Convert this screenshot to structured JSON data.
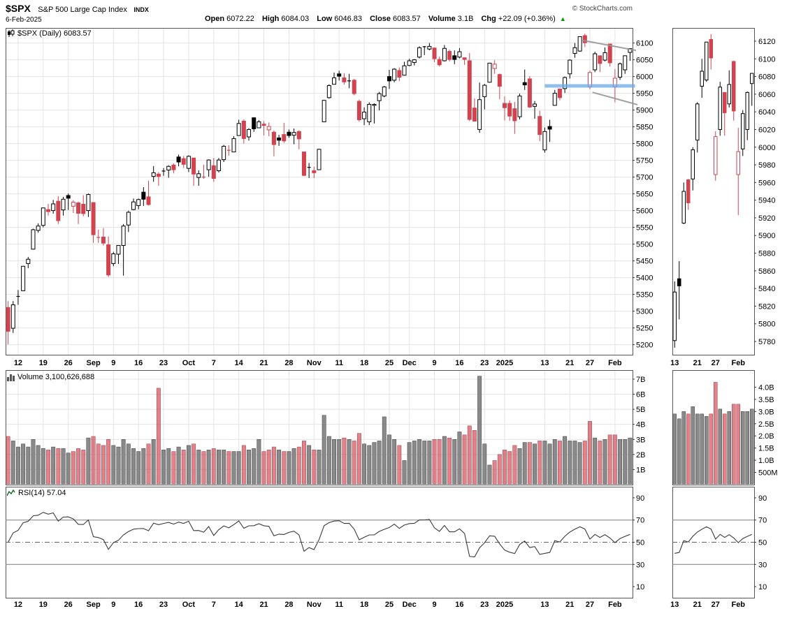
{
  "header": {
    "symbol": "$SPX",
    "name": "S&P 500 Large Cap Index",
    "exchange": "INDX",
    "copyright": "© StockCharts.com",
    "date": "6-Feb-2025",
    "quote": {
      "open_label": "Open",
      "open": "6072.22",
      "high_label": "High",
      "high": "6084.03",
      "low_label": "Low",
      "low": "6046.83",
      "close_label": "Close",
      "close": "6083.57",
      "volume_label": "Volume",
      "volume": "3.1B",
      "chg_label": "Chg",
      "chg": "+22.09 (+0.36%)",
      "arrow": "▲"
    }
  },
  "legends": {
    "price": "$SPX (Daily) 6083.57",
    "volume": "Volume 3,100,626,688",
    "rsi": "RSI(14) 57.04"
  },
  "chart_data": {
    "type": "candlestick",
    "title": "$SPX (Daily)",
    "timeframe": "Daily",
    "panels": [
      "price",
      "volume",
      "rsi"
    ],
    "last_close": 6083.57,
    "rsi_value": 57.04,
    "price_axis": {
      "min": 5170,
      "max": 6145,
      "ticks": [
        5200,
        5250,
        5300,
        5350,
        5400,
        5450,
        5500,
        5550,
        5600,
        5650,
        5700,
        5750,
        5800,
        5850,
        5900,
        5950,
        6000,
        6050,
        6100
      ]
    },
    "mini_price_axis": {
      "min": 5765,
      "max": 6135,
      "ticks": [
        5780,
        5800,
        5820,
        5840,
        5860,
        5880,
        5900,
        5920,
        5940,
        5960,
        5980,
        6000,
        6020,
        6040,
        6060,
        6080,
        6100,
        6120
      ]
    },
    "volume_axis": {
      "max": 7.6,
      "ticks": [
        {
          "v": 1,
          "label": "1B"
        },
        {
          "v": 2,
          "label": "2B"
        },
        {
          "v": 3,
          "label": "3B"
        },
        {
          "v": 4,
          "label": "4B"
        },
        {
          "v": 5,
          "label": "5B"
        },
        {
          "v": 6,
          "label": "6B"
        },
        {
          "v": 7,
          "label": "7B"
        }
      ]
    },
    "mini_volume_axis": {
      "max": 4.7,
      "ticks": [
        {
          "v": 0.5,
          "label": "500M"
        },
        {
          "v": 1,
          "label": "1.0B"
        },
        {
          "v": 1.5,
          "label": "1.5B"
        },
        {
          "v": 2,
          "label": "2.0B"
        },
        {
          "v": 2.5,
          "label": "2.5B"
        },
        {
          "v": 3,
          "label": "3.0B"
        },
        {
          "v": 3.5,
          "label": "3.5B"
        },
        {
          "v": 4,
          "label": "4.0B"
        }
      ]
    },
    "rsi_axis": {
      "ticks": [
        10,
        30,
        50,
        70,
        90
      ],
      "overbought": 70,
      "oversold": 30,
      "mid": 50
    },
    "candles": [
      [
        5311,
        5330,
        5201,
        5240,
        3.2
      ],
      [
        5249,
        5330,
        5235,
        5319,
        2.9
      ],
      [
        5344,
        5363,
        5319,
        5344,
        2.5
      ],
      [
        5361,
        5434,
        5360,
        5434,
        2.7
      ],
      [
        5442,
        5462,
        5428,
        5455,
        2.5
      ],
      [
        5485,
        5546,
        5484,
        5543,
        3.0
      ],
      [
        5541,
        5562,
        5534,
        5554,
        2.6
      ],
      [
        5556,
        5608,
        5550,
        5608,
        2.4
      ],
      [
        5603,
        5620,
        5585,
        5597,
        2.3
      ],
      [
        5600,
        5632,
        5591,
        5620,
        2.5
      ],
      [
        5628,
        5643,
        5560,
        5570,
        2.4
      ],
      [
        5602,
        5641,
        5585,
        5634,
        2.4
      ],
      [
        5645,
        5651,
        5602,
        5637,
        2.1
      ],
      [
        5613,
        5631,
        5593,
        5625,
        2.2
      ],
      [
        5623,
        5627,
        5560,
        5592,
        2.4
      ],
      [
        5619,
        5646,
        5583,
        5591,
        2.3
      ],
      [
        5600,
        5651,
        5581,
        5648,
        3.1
      ],
      [
        5624,
        5624,
        5504,
        5528,
        3.2
      ],
      [
        5518,
        5543,
        5504,
        5520,
        2.7
      ],
      [
        5521,
        5548,
        5496,
        5503,
        2.6
      ],
      [
        5498,
        5523,
        5402,
        5408,
        3.0
      ],
      [
        5442,
        5477,
        5434,
        5471,
        2.6
      ],
      [
        5470,
        5497,
        5441,
        5496,
        2.5
      ],
      [
        5496,
        5560,
        5406,
        5554,
        3.0
      ],
      [
        5557,
        5600,
        5536,
        5595,
        2.7
      ],
      [
        5603,
        5636,
        5601,
        5626,
        2.4
      ],
      [
        5615,
        5636,
        5604,
        5633,
        2.2
      ],
      [
        5655,
        5670,
        5614,
        5634,
        2.4
      ],
      [
        5641,
        5689,
        5615,
        5618,
        2.7
      ],
      [
        5702,
        5733,
        5686,
        5713,
        3.0
      ],
      [
        5709,
        5715,
        5674,
        5702,
        6.4
      ],
      [
        5718,
        5727,
        5704,
        5718,
        2.3
      ],
      [
        5721,
        5735,
        5698,
        5732,
        2.4
      ],
      [
        5736,
        5741,
        5711,
        5722,
        2.2
      ],
      [
        5760,
        5767,
        5732,
        5745,
        2.5
      ],
      [
        5755,
        5763,
        5727,
        5738,
        2.3
      ],
      [
        5726,
        5765,
        5715,
        5762,
        2.6
      ],
      [
        5757,
        5757,
        5674,
        5709,
        2.7
      ],
      [
        5699,
        5720,
        5674,
        5710,
        2.3
      ],
      [
        5700,
        5737,
        5695,
        5700,
        2.2
      ],
      [
        5722,
        5753,
        5701,
        5751,
        2.3
      ],
      [
        5734,
        5757,
        5686,
        5696,
        2.4
      ],
      [
        5719,
        5757,
        5714,
        5751,
        2.3
      ],
      [
        5752,
        5796,
        5745,
        5792,
        2.3
      ],
      [
        5778,
        5795,
        5764,
        5780,
        2.2
      ],
      [
        5775,
        5822,
        5775,
        5815,
        2.2
      ],
      [
        5824,
        5871,
        5824,
        5860,
        2.2
      ],
      [
        5867,
        5872,
        5800,
        5815,
        2.6
      ],
      [
        5820,
        5846,
        5809,
        5842,
        2.3
      ],
      [
        5877,
        5878,
        5835,
        5844,
        2.4
      ],
      [
        5847,
        5870,
        5846,
        5865,
        3.0
      ],
      [
        5858,
        5867,
        5824,
        5854,
        2.2
      ],
      [
        5841,
        5863,
        5822,
        5851,
        2.3
      ],
      [
        5834,
        5839,
        5762,
        5797,
        2.5
      ],
      [
        5817,
        5826,
        5793,
        5810,
        2.3
      ],
      [
        5827,
        5862,
        5802,
        5808,
        2.2
      ],
      [
        5834,
        5842,
        5817,
        5824,
        2.2
      ],
      [
        5825,
        5845,
        5798,
        5833,
        2.4
      ],
      [
        5836,
        5839,
        5783,
        5814,
        2.5
      ],
      [
        5775,
        5775,
        5703,
        5705,
        2.9
      ],
      [
        5727,
        5742,
        5697,
        5729,
        2.6
      ],
      [
        5719,
        5731,
        5697,
        5713,
        2.3
      ],
      [
        5722,
        5784,
        5722,
        5783,
        2.3
      ],
      [
        5865,
        5930,
        5865,
        5929,
        4.6
      ],
      [
        5937,
        5977,
        5934,
        5973,
        3.2
      ],
      [
        5977,
        6012,
        5977,
        5996,
        3.0
      ],
      [
        6008,
        6017,
        5988,
        6001,
        3.0
      ],
      [
        5996,
        6010,
        5976,
        5984,
        3.1
      ],
      [
        5987,
        6008,
        5965,
        5985,
        3.0
      ],
      [
        5989,
        5993,
        5944,
        5949,
        2.9
      ],
      [
        5926,
        5931,
        5865,
        5871,
        3.4
      ],
      [
        5874,
        5908,
        5855,
        5894,
        2.7
      ],
      [
        5865,
        5923,
        5855,
        5917,
        2.6
      ],
      [
        5914,
        5920,
        5860,
        5917,
        2.8
      ],
      [
        5928,
        5954,
        5899,
        5949,
        2.9
      ],
      [
        5942,
        5972,
        5938,
        5969,
        4.5
      ],
      [
        6000,
        6020,
        5963,
        5987,
        3.3
      ],
      [
        5989,
        6025,
        5983,
        6022,
        3.0
      ],
      [
        6018,
        6027,
        5986,
        5998,
        2.6
      ],
      [
        6004,
        6044,
        6003,
        6032,
        1.6
      ],
      [
        6033,
        6053,
        6031,
        6047,
        2.8
      ],
      [
        6042,
        6052,
        6033,
        6050,
        2.9
      ],
      [
        6058,
        6090,
        6054,
        6086,
        3.0
      ],
      [
        6089,
        6091,
        6064,
        6087,
        2.9
      ],
      [
        6082,
        6100,
        6078,
        6090,
        2.9
      ],
      [
        6085,
        6087,
        6043,
        6053,
        3.0
      ],
      [
        6051,
        6060,
        6030,
        6035,
        3.0
      ],
      [
        6047,
        6094,
        6045,
        6084,
        3.2
      ],
      [
        6075,
        6080,
        6045,
        6051,
        3.1
      ],
      [
        6062,
        6078,
        6037,
        6051,
        3.0
      ],
      [
        6058,
        6085,
        6054,
        6074,
        3.5
      ],
      [
        6056,
        6057,
        6035,
        6051,
        3.3
      ],
      [
        6047,
        6070,
        5867,
        5872,
        3.9
      ],
      [
        5906,
        5935,
        5866,
        5867,
        3.6
      ],
      [
        5842,
        5982,
        5832,
        5931,
        7.2
      ],
      [
        5940,
        5978,
        5902,
        5974,
        2.7
      ],
      [
        5983,
        6040,
        5982,
        6040,
        1.3
      ],
      [
        6024,
        6049,
        6008,
        6037,
        1.6
      ],
      [
        6006,
        6009,
        5932,
        5971,
        2.0
      ],
      [
        5920,
        5941,
        5869,
        5907,
        2.3
      ],
      [
        5920,
        5929,
        5868,
        5882,
        2.2
      ],
      [
        5904,
        5924,
        5829,
        5868,
        2.6
      ],
      [
        5880,
        5949,
        5872,
        5942,
        2.4
      ],
      [
        5982,
        6021,
        5960,
        5975,
        2.8
      ],
      [
        5993,
        6001,
        5906,
        5909,
        2.8
      ],
      [
        5911,
        5927,
        5874,
        5918,
        2.7
      ],
      [
        5881,
        5898,
        5807,
        5827,
        2.9
      ],
      [
        5781,
        5848,
        5773,
        5836,
        2.9
      ],
      [
        5851,
        5871,
        5805,
        5843,
        2.7
      ],
      [
        5914,
        5960,
        5913,
        5950,
        3.0
      ],
      [
        5963,
        5964,
        5929,
        5937,
        2.9
      ],
      [
        5964,
        6000,
        5951,
        5997,
        3.2
      ],
      [
        6008,
        6051,
        5994,
        6049,
        2.9
      ],
      [
        6069,
        6100,
        6056,
        6086,
        2.9
      ],
      [
        6076,
        6119,
        6074,
        6119,
        2.8
      ],
      [
        6122,
        6128,
        6088,
        6101,
        2.9
      ],
      [
        5969,
        6018,
        5962,
        6012,
        4.2
      ],
      [
        6020,
        6074,
        6013,
        6068,
        3.1
      ],
      [
        6062,
        6062,
        6013,
        6039,
        2.9
      ],
      [
        6049,
        6087,
        6045,
        6071,
        3.0
      ],
      [
        6097,
        6098,
        6030,
        6041,
        3.3
      ],
      [
        5969,
        6022,
        5923,
        5995,
        3.3
      ],
      [
        5998,
        6042,
        5990,
        6038,
        3.0
      ],
      [
        6020,
        6063,
        6008,
        6062,
        3.0
      ],
      [
        6072,
        6084.03,
        6046.83,
        6083.57,
        3.1
      ]
    ],
    "xticks": [
      {
        "i": 2,
        "label": "12"
      },
      {
        "i": 7,
        "label": "19"
      },
      {
        "i": 12,
        "label": "26"
      },
      {
        "i": 17,
        "label": "Sep",
        "bold": true
      },
      {
        "i": 21,
        "label": "9"
      },
      {
        "i": 26,
        "label": "16"
      },
      {
        "i": 31,
        "label": "23"
      },
      {
        "i": 36,
        "label": "Oct",
        "bold": true
      },
      {
        "i": 41,
        "label": "7"
      },
      {
        "i": 46,
        "label": "14"
      },
      {
        "i": 51,
        "label": "21"
      },
      {
        "i": 56,
        "label": "28"
      },
      {
        "i": 61,
        "label": "Nov",
        "bold": true
      },
      {
        "i": 66,
        "label": "11"
      },
      {
        "i": 71,
        "label": "18"
      },
      {
        "i": 76,
        "label": "25"
      },
      {
        "i": 80,
        "label": "Dec",
        "bold": true
      },
      {
        "i": 85,
        "label": "9"
      },
      {
        "i": 90,
        "label": "16"
      },
      {
        "i": 95,
        "label": "23"
      },
      {
        "i": 99,
        "label": "2025",
        "bold": true
      },
      {
        "i": 107,
        "label": "13"
      },
      {
        "i": 112,
        "label": "21"
      },
      {
        "i": 116,
        "label": "27"
      },
      {
        "i": 121,
        "label": "Feb",
        "bold": true
      }
    ],
    "mini_start_index": 107,
    "mini_xticks": [
      {
        "i": 0,
        "label": "13"
      },
      {
        "i": 5,
        "label": "21"
      },
      {
        "i": 9,
        "label": "27"
      },
      {
        "i": 14,
        "label": "Feb",
        "bold": true
      }
    ],
    "annotations": {
      "support_line": {
        "price": 5972,
        "from_i": 107,
        "to_i": 125,
        "color": "#6aaae4"
      },
      "channel_upper": {
        "from": [
          114.5,
          6108
        ],
        "to": [
          125.2,
          6078
        ],
        "color": "#969696"
      },
      "channel_lower": {
        "from": [
          116.5,
          5953
        ],
        "to": [
          125.5,
          5916
        ],
        "color": "#969696"
      }
    },
    "colors": {
      "up": "#000000",
      "down": "#d0434f",
      "hollow_fill": "#ffffff",
      "volume_up": "#7a7a7a",
      "volume_down": "#d0434f",
      "grid": "#e3e3e3",
      "border": "#555555",
      "rsi_line": "#3a3a3a",
      "arrow_up": "#009900"
    }
  }
}
